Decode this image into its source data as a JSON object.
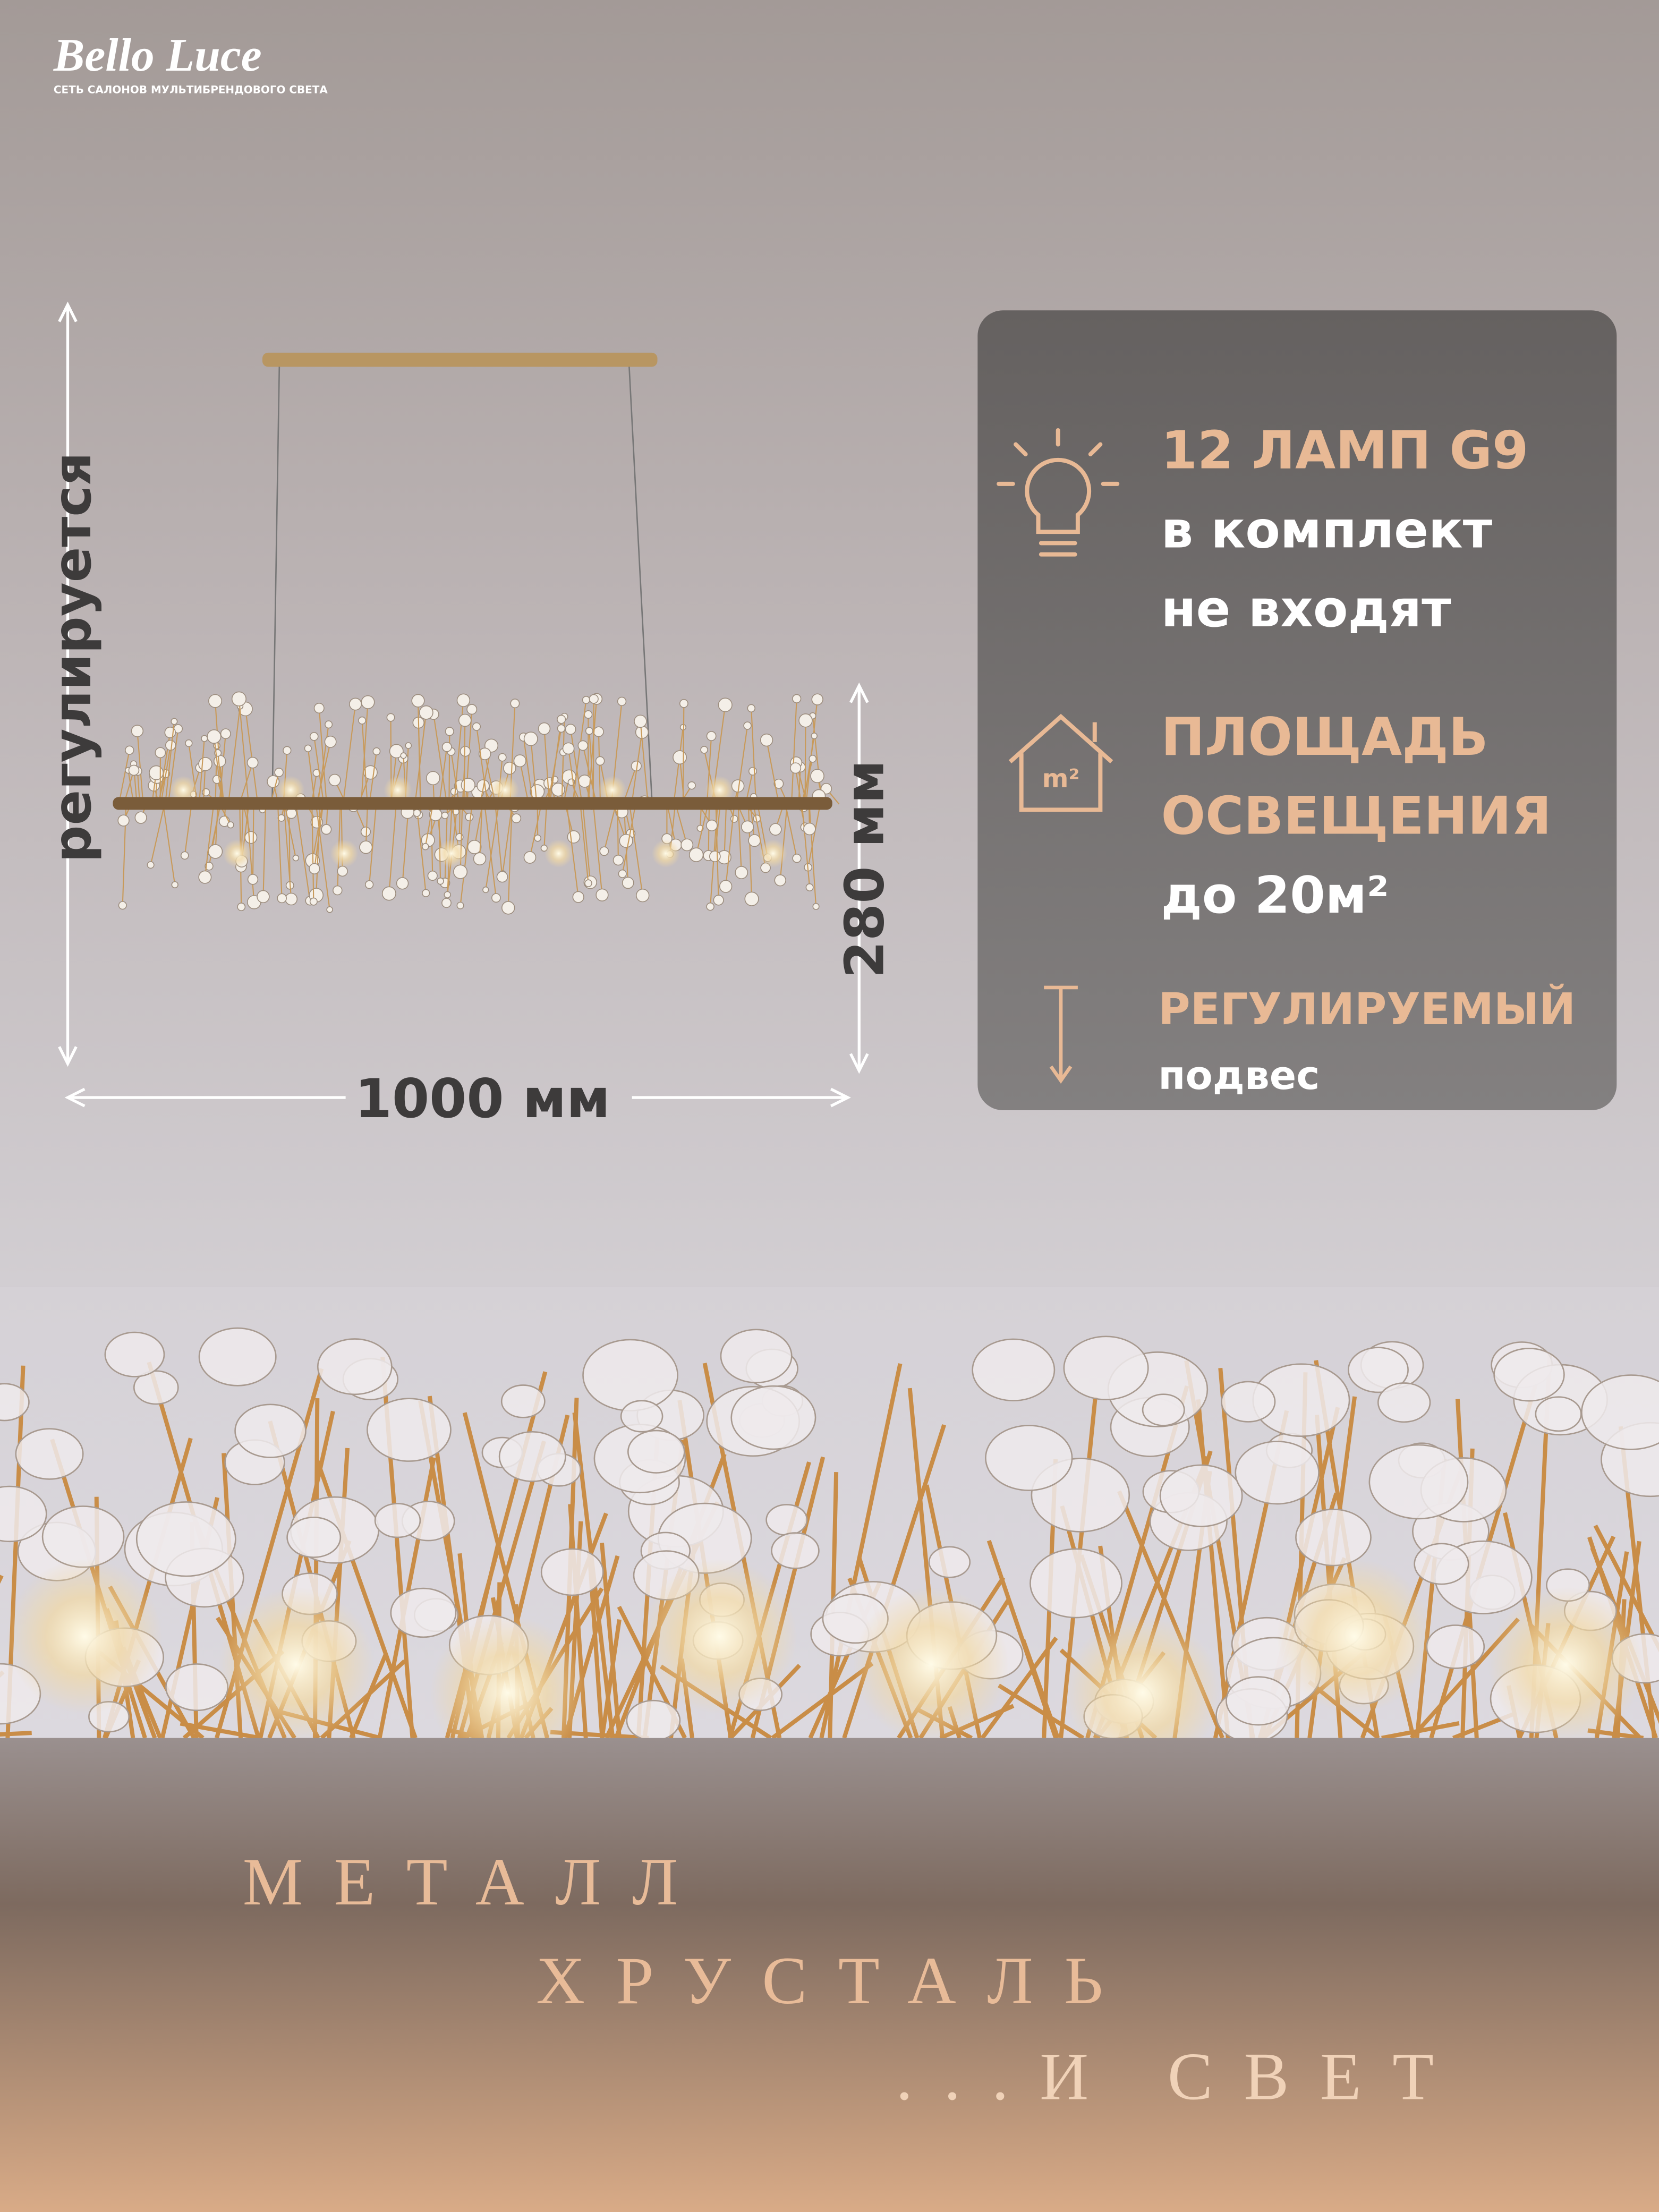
{
  "brand": {
    "name": "Bello Luce",
    "tagline": "СЕТЬ САЛОНОВ МУЛЬТИБРЕНДОВОГО СВЕТА"
  },
  "dimensions": {
    "height_note": "регулируется",
    "depth": "280 мм",
    "width": "1000 мм"
  },
  "features": [
    {
      "lines": [
        "12 ЛАМП G9",
        "в комплект",
        "не входят"
      ]
    },
    {
      "icon_label": "m²",
      "lines": [
        "ПЛОЩАДЬ",
        "ОСВЕЩЕНИЯ",
        "до 20м²"
      ]
    },
    {
      "lines": [
        "РЕГУЛИРУЕМЫЙ",
        "подвес"
      ]
    }
  ],
  "slogan": [
    "МЕТАЛЛ",
    "ХРУСТАЛЬ",
    "...И СВЕТ"
  ]
}
